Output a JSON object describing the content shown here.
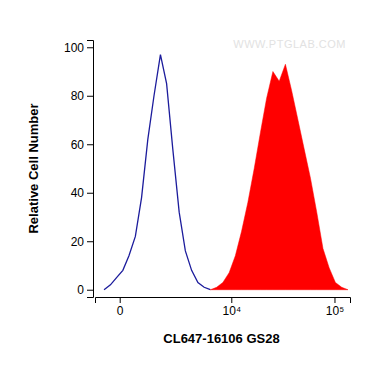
{
  "chart_data": {
    "type": "area",
    "x_label": "CL647-16106 GS28",
    "y_label": "Relative Cell Number",
    "annotations": [
      "WWW.PTGLAB.COM"
    ],
    "log": "x",
    "x": [
      -400,
      -220,
      -70,
      70,
      220,
      400,
      600,
      830,
      1090,
      1400,
      1740,
      2130,
      2590,
      3100,
      3690,
      4370,
      5140,
      6020,
      7030,
      8180,
      9500,
      11000,
      12700,
      14700,
      17000,
      19600,
      22500,
      25900,
      29800,
      34200,
      39300,
      45100,
      51700,
      59300,
      68000,
      77900,
      89200,
      102000,
      117000,
      134000
    ],
    "series": [
      {
        "type": "line",
        "color": "#1c1c9c",
        "values": [
          0,
          2,
          5,
          8,
          14,
          22,
          38,
          62,
          80,
          97,
          85,
          58,
          32,
          16,
          8,
          3,
          1,
          0,
          null,
          null,
          null,
          null,
          null,
          null,
          null,
          null,
          null,
          null,
          null,
          null,
          null,
          null,
          null,
          null,
          null,
          null,
          null,
          null,
          null,
          null
        ]
      },
      {
        "type": "area",
        "color": "#ff0000",
        "values": [
          null,
          null,
          null,
          null,
          null,
          null,
          null,
          null,
          null,
          null,
          null,
          null,
          null,
          null,
          null,
          null,
          null,
          0,
          1,
          3,
          7,
          14,
          24,
          36,
          50,
          65,
          79,
          90,
          86,
          93,
          82,
          70,
          58,
          46,
          32,
          17,
          9,
          3,
          1,
          0
        ]
      }
    ],
    "xlim": [
      -700,
      140000
    ],
    "xticks": [
      0,
      {
        "value": 10000,
        "label": "10⁴"
      },
      {
        "value": 100000,
        "label": "10⁵"
      }
    ],
    "ylim": [
      -3,
      103
    ],
    "yticks": [
      0,
      20,
      40,
      60,
      80,
      100
    ]
  }
}
